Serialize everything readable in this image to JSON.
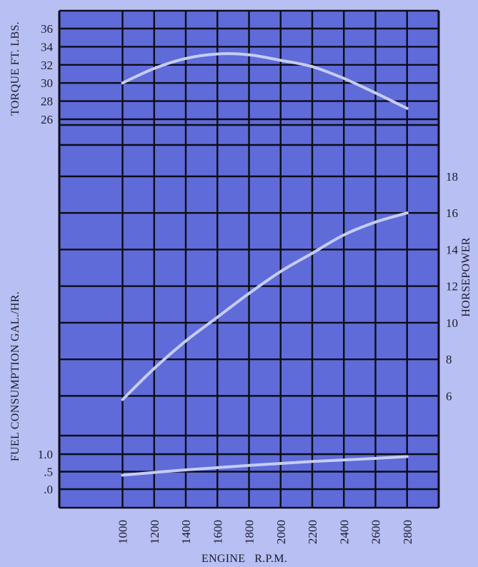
{
  "chart_data": {
    "type": "line",
    "x_axis": {
      "label": "ENGINE   R.P.M.",
      "ticks": [
        1000,
        1200,
        1400,
        1600,
        1800,
        2000,
        2200,
        2400,
        2600,
        2800
      ],
      "range": [
        600,
        3000
      ]
    },
    "panels": [
      {
        "id": "torque",
        "axis_label": "TORQUE FT. LBS.",
        "axis_side": "left",
        "ticks": [
          26,
          28,
          30,
          32,
          34,
          36
        ],
        "range": [
          26,
          36
        ],
        "series": [
          {
            "x": [
              1000,
              1200,
              1400,
              1600,
              1800,
              2000,
              2200,
              2400,
              2600,
              2800
            ],
            "y": [
              30.0,
              31.6,
              32.7,
              33.2,
              33.1,
              32.5,
              31.8,
              30.5,
              28.9,
              27.2
            ]
          }
        ]
      },
      {
        "id": "horsepower",
        "axis_label": "HORSEPOWER",
        "axis_side": "right",
        "ticks": [
          6,
          8,
          10,
          12,
          14,
          16,
          18
        ],
        "range": [
          5,
          18
        ],
        "series": [
          {
            "x": [
              1000,
              1200,
              1400,
              1600,
              1800,
              2000,
              2200,
              2400,
              2600,
              2800
            ],
            "y": [
              5.8,
              7.5,
              9.0,
              10.3,
              11.6,
              12.8,
              13.8,
              14.8,
              15.5,
              16.0
            ]
          }
        ]
      },
      {
        "id": "fuel",
        "axis_label": "FUEL CONSUMPTION GAL./HR.",
        "axis_side": "left",
        "ticks": [
          ".0",
          ".5",
          "1.0"
        ],
        "range": [
          0,
          1
        ],
        "series": [
          {
            "x": [
              1000,
              1400,
              1800,
              2200,
              2600,
              2800
            ],
            "y": [
              0.4,
              0.55,
              0.68,
              0.79,
              0.88,
              0.93
            ]
          }
        ]
      }
    ],
    "colors": {
      "page": "#b7bff3",
      "plot": "#5f6bd8",
      "grid": "#0c0c18",
      "curve": "#c5ccf5",
      "text": "#1b1b2a"
    },
    "grid": true
  }
}
